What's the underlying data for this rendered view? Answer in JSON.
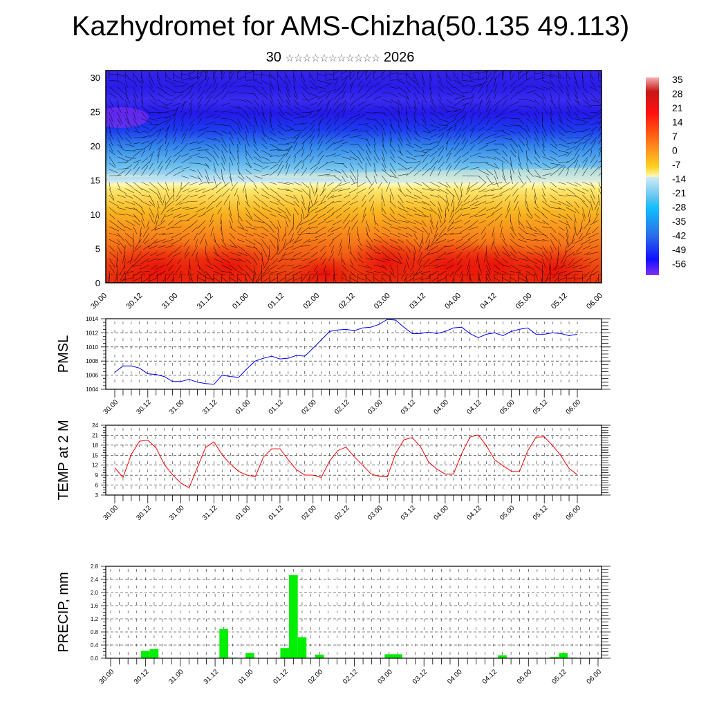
{
  "title": "Kazhydromet for AMS-Chizha(50.135 49.113)",
  "subtitle": {
    "day": "30",
    "month_glyphs": "☆☆☆☆☆☆☆☆☆☆☆",
    "year": "2026"
  },
  "x_labels": [
    "30.00",
    "30.12",
    "31.00",
    "31.12",
    "01.00",
    "01.12",
    "02.00",
    "02.12",
    "03.00",
    "03.12",
    "04.00",
    "04.12",
    "05.00",
    "05.12",
    "06.00"
  ],
  "colors": {
    "pmsl": "#0000ff",
    "temp": "#ff0000",
    "precip": "#00ee00"
  },
  "chart_data": [
    {
      "type": "heatmap",
      "title": "Temperature cross-section with wind",
      "ylabel": "",
      "yticks": [
        "0",
        "5",
        "10",
        "15",
        "20",
        "25",
        "30"
      ],
      "ylim": [
        0,
        31
      ],
      "colorbar_labels": [
        "35",
        "28",
        "21",
        "14",
        "7",
        "0",
        "-7",
        "-14",
        "-21",
        "-28",
        "-35",
        "-42",
        "-49",
        "-56"
      ]
    },
    {
      "type": "line",
      "ylabel": "PMSL",
      "yticks": [
        "1014",
        "1012",
        "1010",
        "1008",
        "1006",
        "1004"
      ],
      "ylim": [
        1004,
        1014
      ],
      "x_step_hours": 3,
      "values": [
        1006.4,
        1007.3,
        1007.3,
        1007.0,
        1006.2,
        1006.1,
        1005.8,
        1005.1,
        1005.1,
        1005.4,
        1005.0,
        1004.8,
        1004.7,
        1006.0,
        1005.8,
        1005.7,
        1006.9,
        1008.0,
        1008.4,
        1008.7,
        1008.3,
        1008.4,
        1008.8,
        1008.7,
        1009.8,
        1011.0,
        1012.2,
        1012.4,
        1012.5,
        1012.3,
        1012.7,
        1012.8,
        1013.2,
        1013.9,
        1013.8,
        1012.8,
        1011.9,
        1011.9,
        1012.1,
        1011.9,
        1012.2,
        1012.7,
        1012.8,
        1011.9,
        1011.3,
        1011.8,
        1012.0,
        1011.6,
        1012.2,
        1012.5,
        1012.7,
        1011.8,
        1011.8,
        1012.0,
        1011.9,
        1011.6,
        1011.8
      ]
    },
    {
      "type": "line",
      "ylabel": "TEMP at 2 M",
      "yticks": [
        "24",
        "21",
        "18",
        "15",
        "12",
        "9",
        "6",
        "3"
      ],
      "ylim": [
        3,
        24
      ],
      "x_step_hours": 3,
      "values": [
        11.2,
        8.3,
        15.2,
        19.2,
        19.5,
        17.2,
        12.2,
        9.1,
        6.6,
        5.2,
        11.3,
        17.3,
        19.0,
        15.1,
        12.3,
        10.1,
        9.0,
        8.5,
        14.4,
        16.9,
        16.9,
        13.6,
        10.6,
        9.0,
        9.0,
        8.3,
        13.2,
        16.4,
        17.4,
        14.5,
        12.0,
        9.4,
        8.6,
        8.5,
        15.5,
        19.6,
        20.3,
        17.6,
        12.9,
        10.8,
        9.3,
        9.3,
        15.5,
        20.4,
        21.1,
        17.8,
        13.6,
        11.8,
        10.2,
        10.1,
        16.3,
        20.4,
        20.5,
        17.9,
        14.9,
        11.0,
        9.1
      ]
    },
    {
      "type": "bar",
      "ylabel": "PRECIP, mm",
      "yticks": [
        "2.8",
        "2.4",
        "2.0",
        "1.6",
        "1.2",
        "0.8",
        "0.4",
        "0.0"
      ],
      "ylim": [
        0,
        2.8
      ],
      "x_step_hours": 3,
      "values": [
        0,
        0,
        0,
        0,
        0.23,
        0.28,
        0,
        0,
        0,
        0,
        0,
        0,
        0,
        0.89,
        0.02,
        0,
        0.16,
        0,
        0,
        0,
        0.31,
        2.53,
        0.64,
        0.02,
        0.11,
        0,
        0,
        0,
        0,
        0,
        0,
        0,
        0.12,
        0.12,
        0,
        0,
        0,
        0,
        0,
        0,
        0,
        0,
        0,
        0,
        0,
        0.09,
        0,
        0,
        0,
        0,
        0,
        0.04,
        0.16,
        0.02,
        0,
        0,
        0
      ]
    }
  ]
}
